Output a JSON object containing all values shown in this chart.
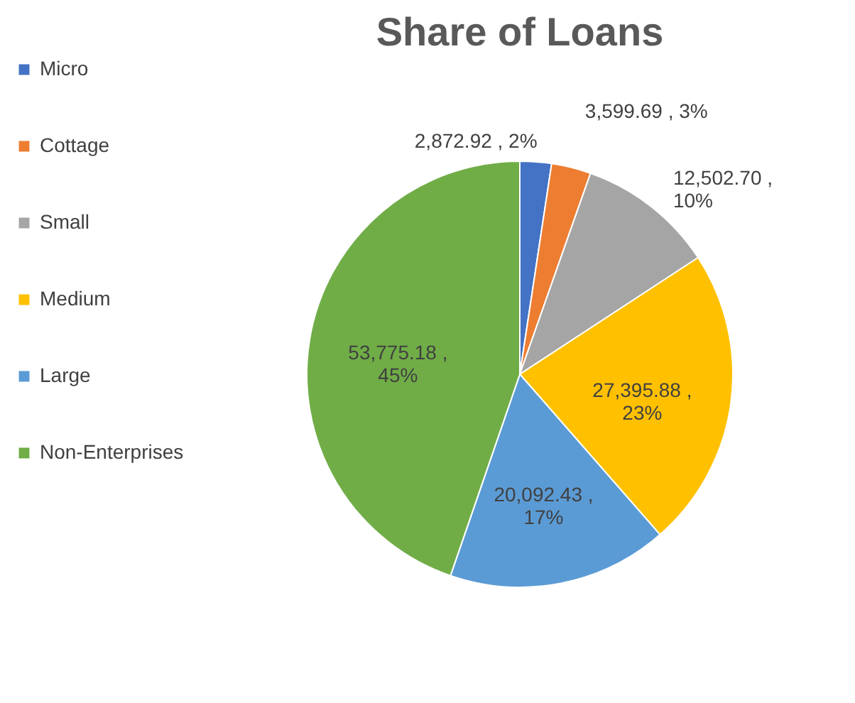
{
  "chart_data": {
    "type": "pie",
    "title": "Share of Loans",
    "categories": [
      "Micro",
      "Cottage",
      "Small",
      "Medium",
      "Large",
      "Non-Enterprises"
    ],
    "values": [
      2872.92,
      3599.69,
      12502.7,
      27395.88,
      20092.43,
      53775.18
    ],
    "colors": [
      "#4472c4",
      "#ed7d31",
      "#a5a5a5",
      "#ffc000",
      "#5b9bd5",
      "#70ad47"
    ],
    "value_labels": [
      "2,872.92 , 2%",
      "3,599.69 , 3%",
      "12,502.70 , 10%",
      "27,395.88 , 23%",
      "20,092.43 , 17%",
      "53,775.18 , 45%"
    ],
    "legend": "left"
  }
}
